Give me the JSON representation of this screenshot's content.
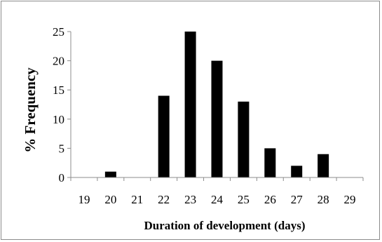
{
  "chart_data": {
    "type": "bar",
    "title": "",
    "xlabel": "Duration of development (days)",
    "ylabel": "% Frequency",
    "categories": [
      "19",
      "20",
      "21",
      "22",
      "23",
      "24",
      "25",
      "26",
      "27",
      "28",
      "29"
    ],
    "values": [
      0,
      1,
      0,
      14,
      25,
      20,
      13,
      5,
      2,
      4,
      0
    ],
    "yticks": [
      "0",
      "5",
      "10",
      "15",
      "20",
      "25"
    ],
    "ylim": [
      0,
      25
    ],
    "grid": false,
    "legend": "none",
    "bar_color": "#000000",
    "axis_color": "#8c8c8c"
  }
}
